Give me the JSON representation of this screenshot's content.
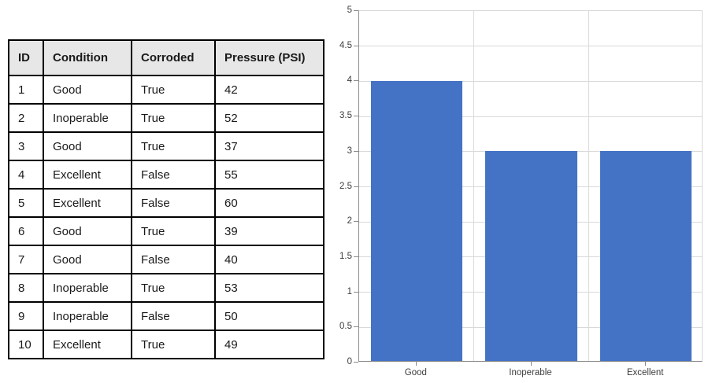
{
  "table": {
    "headers": [
      "ID",
      "Condition",
      "Corroded",
      "Pressure (PSI)"
    ],
    "rows": [
      [
        "1",
        "Good",
        "True",
        "42"
      ],
      [
        "2",
        "Inoperable",
        "True",
        "52"
      ],
      [
        "3",
        "Good",
        "True",
        "37"
      ],
      [
        "4",
        "Excellent",
        "False",
        "55"
      ],
      [
        "5",
        "Excellent",
        "False",
        "60"
      ],
      [
        "6",
        "Good",
        "True",
        "39"
      ],
      [
        "7",
        "Good",
        "False",
        "40"
      ],
      [
        "8",
        "Inoperable",
        "True",
        "53"
      ],
      [
        "9",
        "Inoperable",
        "False",
        "50"
      ],
      [
        "10",
        "Excellent",
        "True",
        "49"
      ]
    ]
  },
  "chart_data": {
    "type": "bar",
    "categories": [
      "Good",
      "Inoperable",
      "Excellent"
    ],
    "values": [
      4,
      3,
      3
    ],
    "title": "",
    "xlabel": "",
    "ylabel": "",
    "ylim": [
      0,
      5
    ],
    "ytick_step": 0.5,
    "grid": true,
    "legend": "none",
    "bar_color": "#4472C4"
  },
  "colors": {
    "bar": "#4472C4",
    "table_header_bg": "#E7E7E7",
    "table_border": "#000000",
    "gridline": "#D9D9D9",
    "axis_line": "#8C8C8C",
    "chart_text": "#3D3D3D"
  }
}
